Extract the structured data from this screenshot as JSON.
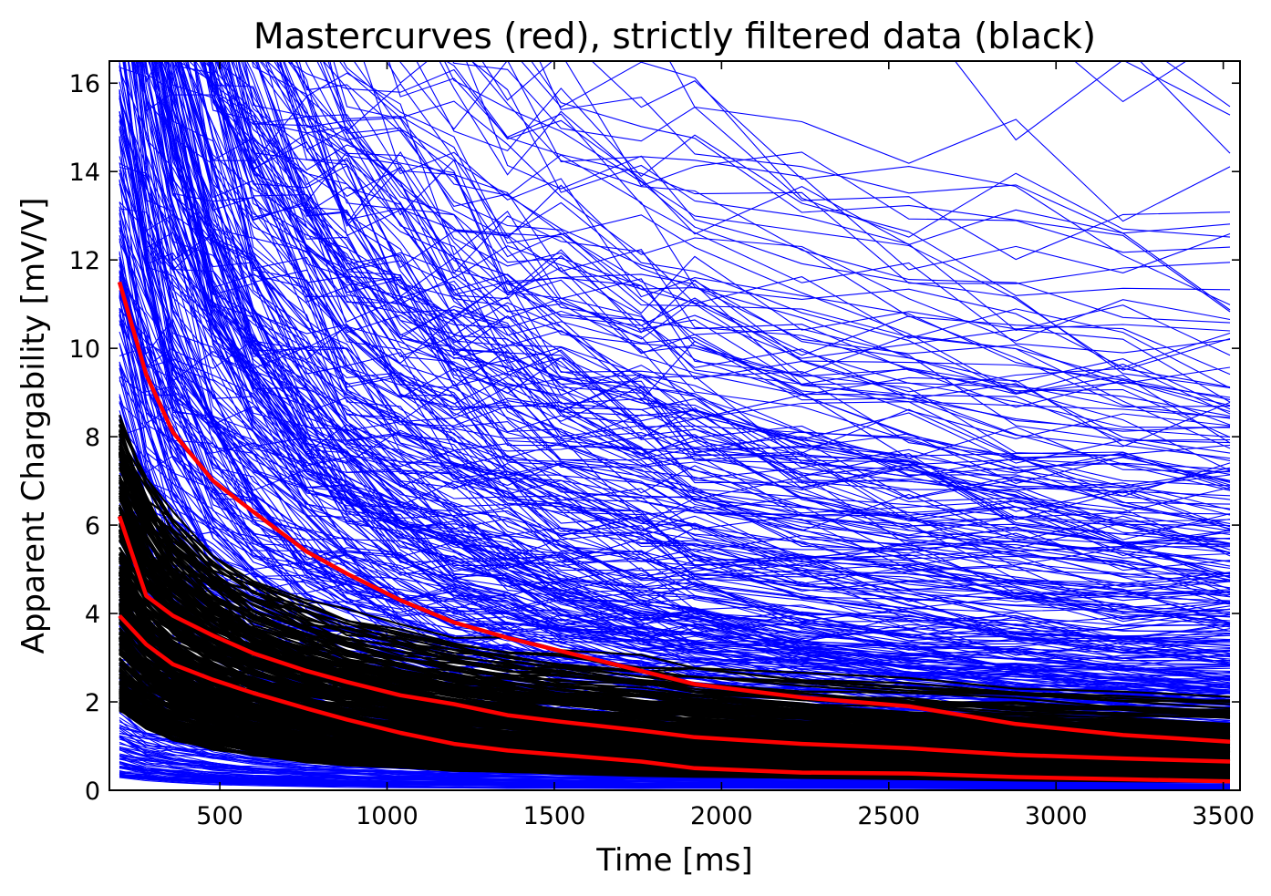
{
  "chart_data": {
    "type": "line",
    "title": "Mastercurves (red), strictly filtered data (black)",
    "xlabel": "Time [ms]",
    "ylabel": "Apparent Chargability [mV/V]",
    "xlim": [
      170,
      3550
    ],
    "ylim": [
      0,
      16.5
    ],
    "xticks": [
      500,
      1000,
      1500,
      2000,
      2500,
      3000,
      3500
    ],
    "yticks": [
      0,
      2,
      4,
      6,
      8,
      10,
      12,
      14,
      16
    ],
    "grid": false,
    "legend": "none",
    "gate_times": [
      200,
      280,
      360,
      480,
      600,
      760,
      880,
      1040,
      1200,
      1360,
      1520,
      1760,
      1920,
      2240,
      2560,
      2880,
      3200,
      3520
    ],
    "colors": {
      "raw_data": "#0000ff",
      "filtered_data": "#000000",
      "mastercurve": "#ff0000"
    },
    "series": [
      {
        "group": "mastercurves",
        "color": "#ff0000",
        "values": [
          11.5,
          9.4,
          8.1,
          7.0,
          6.3,
          5.4,
          4.9,
          4.3,
          3.8,
          3.45,
          3.15,
          2.7,
          2.4,
          2.1,
          1.9,
          1.5,
          1.25,
          1.1
        ]
      },
      {
        "group": "mastercurves",
        "color": "#ff0000",
        "values": [
          6.2,
          4.4,
          3.95,
          3.5,
          3.1,
          2.7,
          2.45,
          2.15,
          1.95,
          1.7,
          1.55,
          1.35,
          1.2,
          1.05,
          0.95,
          0.8,
          0.72,
          0.65
        ]
      },
      {
        "group": "mastercurves",
        "color": "#ff0000",
        "values": [
          3.95,
          3.3,
          2.85,
          2.5,
          2.2,
          1.85,
          1.6,
          1.3,
          1.05,
          0.9,
          0.8,
          0.65,
          0.5,
          0.4,
          0.38,
          0.3,
          0.25,
          0.2
        ]
      }
    ]
  }
}
